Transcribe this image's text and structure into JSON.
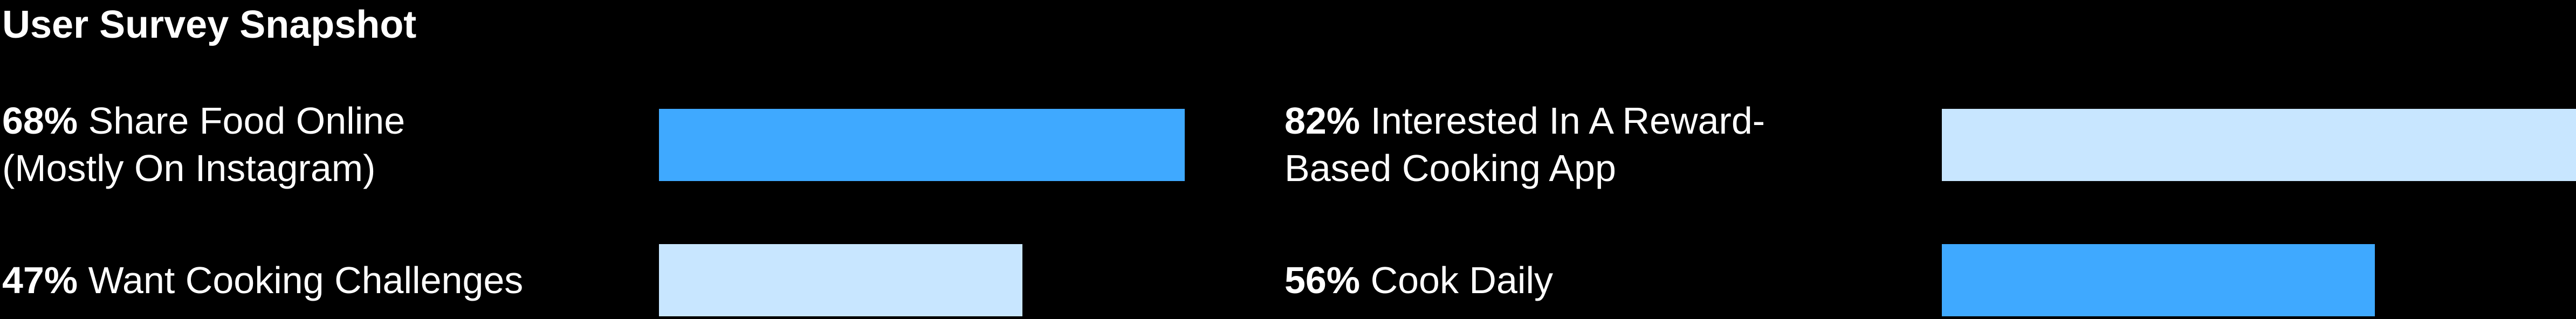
{
  "title": "User Survey Snapshot",
  "colors": {
    "background": "#000000",
    "text": "#ffffff",
    "bar_strong": "#3fa9ff",
    "bar_light": "#c8e6ff"
  },
  "chart_data": {
    "type": "bar",
    "title": "User Survey Snapshot",
    "orientation": "horizontal",
    "xlim": [
      0,
      82
    ],
    "items": [
      {
        "percent_label": "68%",
        "line1": "Share Food Online",
        "line2": "(Mostly On Instagram)",
        "value": 68,
        "color": "#3fa9ff"
      },
      {
        "percent_label": "82%",
        "line1": "Interested In A Reward-",
        "line2": "Based Cooking App",
        "value": 82,
        "color": "#c8e6ff"
      },
      {
        "percent_label": "47%",
        "line1": "Want Cooking Challenges",
        "line2": "",
        "value": 47,
        "color": "#c8e6ff"
      },
      {
        "percent_label": "56%",
        "line1": "Cook Daily",
        "line2": "",
        "value": 56,
        "color": "#3fa9ff"
      }
    ]
  }
}
